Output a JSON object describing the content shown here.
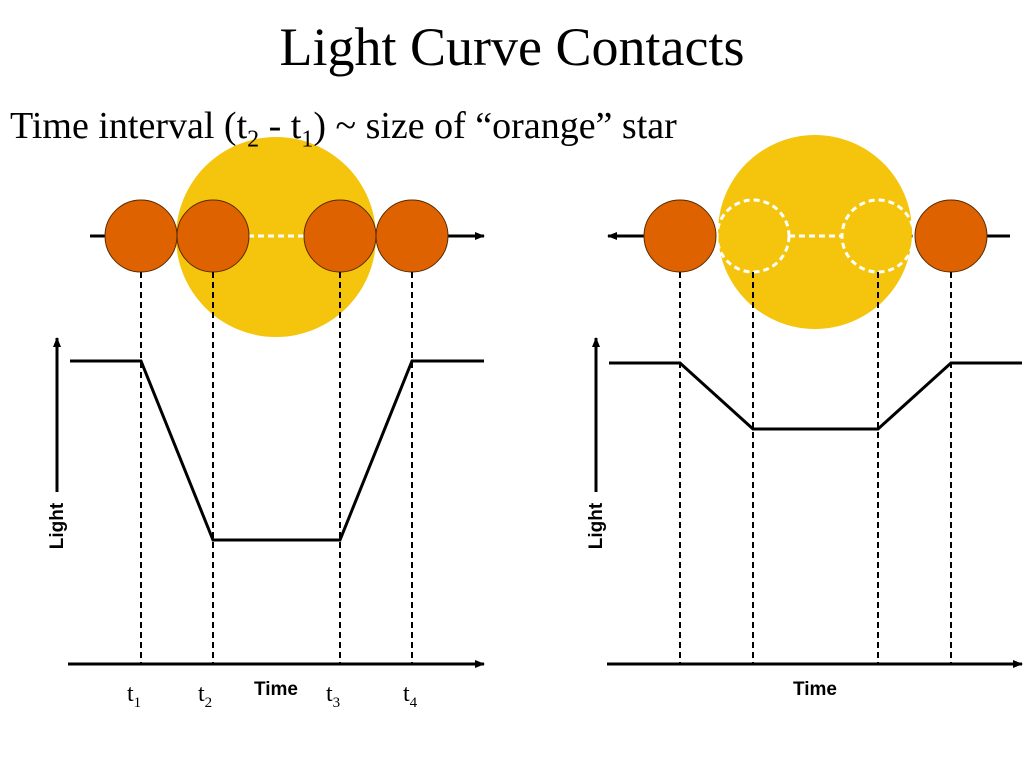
{
  "title": "Light Curve Contacts",
  "subtitle": {
    "before": "Time interval (t",
    "sub1": "2",
    "middle": " - t",
    "sub2": "1",
    "after": ") ~ size of “orange” star"
  },
  "colors": {
    "big_star": "#f5c40c",
    "small_star": "#df6200",
    "ghost_outline": "#ffffff",
    "line": "#000000"
  },
  "left_panel": {
    "y_axis_label": "Light",
    "x_axis_label": "Time",
    "contacts": [
      {
        "base": "t",
        "sub": "1"
      },
      {
        "base": "t",
        "sub": "2"
      },
      {
        "base": "t",
        "sub": "3"
      },
      {
        "base": "t",
        "sub": "4"
      }
    ],
    "orbit_direction": "left-to-right"
  },
  "right_panel": {
    "y_axis_label": "Light",
    "x_axis_label": "Time",
    "orbit_direction": "right-to-left"
  }
}
